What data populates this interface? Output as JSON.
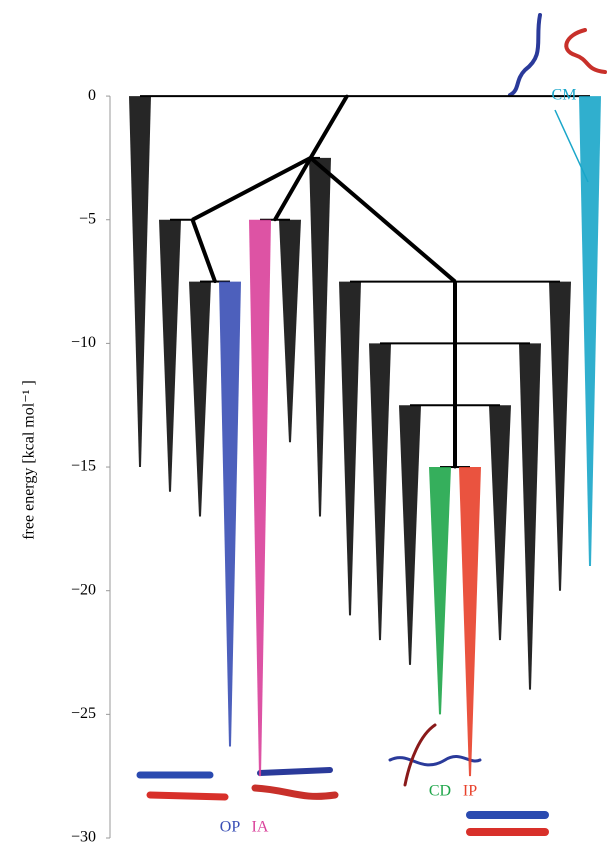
{
  "chart_data": {
    "type": "disconnectivity",
    "y_label": "free energy [kcal mol⁻¹ ]",
    "ylim": [
      -30,
      3.4
    ],
    "yticks": [
      0,
      {
        "value": -5,
        "label": "−5"
      },
      {
        "value": -10,
        "label": "−10"
      },
      {
        "value": -15,
        "label": "−15"
      },
      {
        "value": -20,
        "label": "−20"
      },
      {
        "value": -25,
        "label": "−25"
      },
      {
        "value": -30,
        "label": "−30"
      }
    ],
    "color": "#000000",
    "tree": {
      "energy": 0,
      "children": [
        {
          "energy": -15
        },
        {
          "energy": -2.5,
          "children": [
            {
              "energy": -5,
              "children": [
                {
                  "energy": -16
                },
                {
                  "energy": -7.5,
                  "children": [
                    {
                      "energy": -17
                    },
                    {
                      "energy": -26.3,
                      "label": "OP",
                      "color": "#3a4fb5"
                    }
                  ]
                }
              ]
            },
            {
              "energy": -5,
              "children": [
                {
                  "energy": -27.5,
                  "label": "IA",
                  "color": "#d9409a"
                },
                {
                  "energy": -14
                }
              ]
            },
            {
              "energy": -17
            },
            {
              "energy": -7.5,
              "children": [
                {
                  "energy": -21
                },
                {
                  "energy": -10,
                  "children": [
                    {
                      "energy": -22
                    },
                    {
                      "energy": -12.5,
                      "children": [
                        {
                          "energy": -23
                        },
                        {
                          "energy": -15,
                          "children": [
                            {
                              "energy": -25,
                              "label": "CD",
                              "color": "#1fa64a"
                            },
                            {
                              "energy": -27.5,
                              "label": "IP",
                              "color": "#e8402a"
                            }
                          ]
                        },
                        {
                          "energy": -22
                        }
                      ]
                    },
                    {
                      "energy": -24
                    }
                  ]
                },
                {
                  "energy": -20
                }
              ]
            }
          ]
        },
        {
          "energy": -19,
          "label": "CM",
          "color": "#1aa6c9"
        }
      ]
    }
  }
}
